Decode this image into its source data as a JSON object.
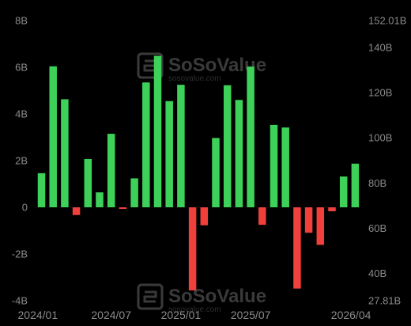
{
  "chart_data": {
    "type": "bar",
    "categories": [
      "2024/01",
      "2024/02",
      "2024/03",
      "2024/04",
      "2024/05",
      "2024/06",
      "2024/07",
      "2024/08",
      "2024/09",
      "2024/10",
      "2024/11",
      "2024/12",
      "2025/01",
      "2025/02",
      "2025/03",
      "2025/04",
      "2025/05",
      "2025/06",
      "2025/07",
      "2025/08",
      "2025/09",
      "2025/10",
      "2025/11",
      "2025/12",
      "2026/01",
      "2026/02",
      "2026/03",
      "2026/04"
    ],
    "values": [
      1.46,
      6.04,
      4.63,
      -0.33,
      2.07,
      0.64,
      3.15,
      -0.07,
      1.24,
      5.35,
      6.49,
      4.55,
      5.25,
      -3.56,
      -0.77,
      2.97,
      5.23,
      4.6,
      6.03,
      -0.75,
      3.53,
      3.42,
      -3.48,
      -1.09,
      -1.61,
      -0.17,
      1.32,
      1.87
    ],
    "y_left": {
      "ticks": [
        "8B",
        "6B",
        "4B",
        "2B",
        "0",
        "-2B",
        "-4B"
      ],
      "tick_values": [
        8,
        6,
        4,
        2,
        0,
        -2,
        -4
      ],
      "ylim": [
        -4,
        8
      ]
    },
    "y_right": {
      "ticks": [
        "152.01B",
        "140B",
        "120B",
        "100B",
        "80B",
        "60B",
        "40B",
        "27.81B"
      ],
      "tick_values": [
        152.01,
        140,
        120,
        100,
        80,
        60,
        40,
        27.81
      ],
      "ylim": [
        27.81,
        152.01
      ]
    },
    "x_ticks": [
      "2024/01",
      "2024/07",
      "2025/01",
      "2025/07",
      "2026/04"
    ],
    "colors": {
      "positive": "#3dd15a",
      "negative": "#f0403c",
      "axis_text": "#8a8a8a",
      "background": "#000000"
    },
    "grid": false,
    "legend": "none"
  },
  "watermark": {
    "brand": "SoSoValue",
    "url": "sosovalue.com"
  }
}
